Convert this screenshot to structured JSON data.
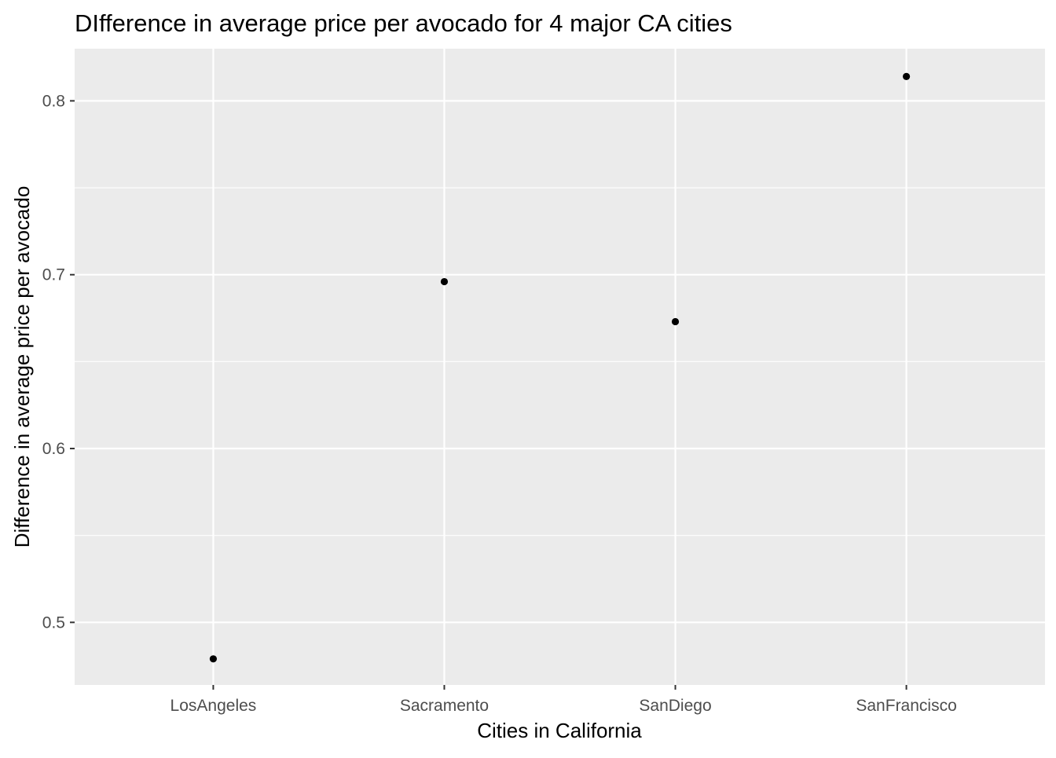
{
  "chart_data": {
    "type": "scatter",
    "title": "DIfference in average price per avocado for 4 major CA cities",
    "xlabel": "Cities in California",
    "ylabel": "Difference in average price per avocado",
    "categories": [
      "LosAngeles",
      "Sacramento",
      "SanDiego",
      "SanFrancisco"
    ],
    "values": [
      0.479,
      0.696,
      0.673,
      0.814
    ],
    "ylim": [
      0.464,
      0.83
    ],
    "y_ticks": [
      0.5,
      0.6,
      0.7,
      0.8
    ],
    "y_tick_labels": [
      "0.5",
      "0.6",
      "0.7",
      "0.8"
    ],
    "y_minor_ticks": [
      0.55,
      0.65,
      0.75
    ],
    "grid": true,
    "legend": "none",
    "panel_background": "#ebebeb",
    "grid_color": "#ffffff",
    "point_color": "#000000",
    "tick_color": "#333333",
    "tick_label_color": "#4d4d4d"
  }
}
